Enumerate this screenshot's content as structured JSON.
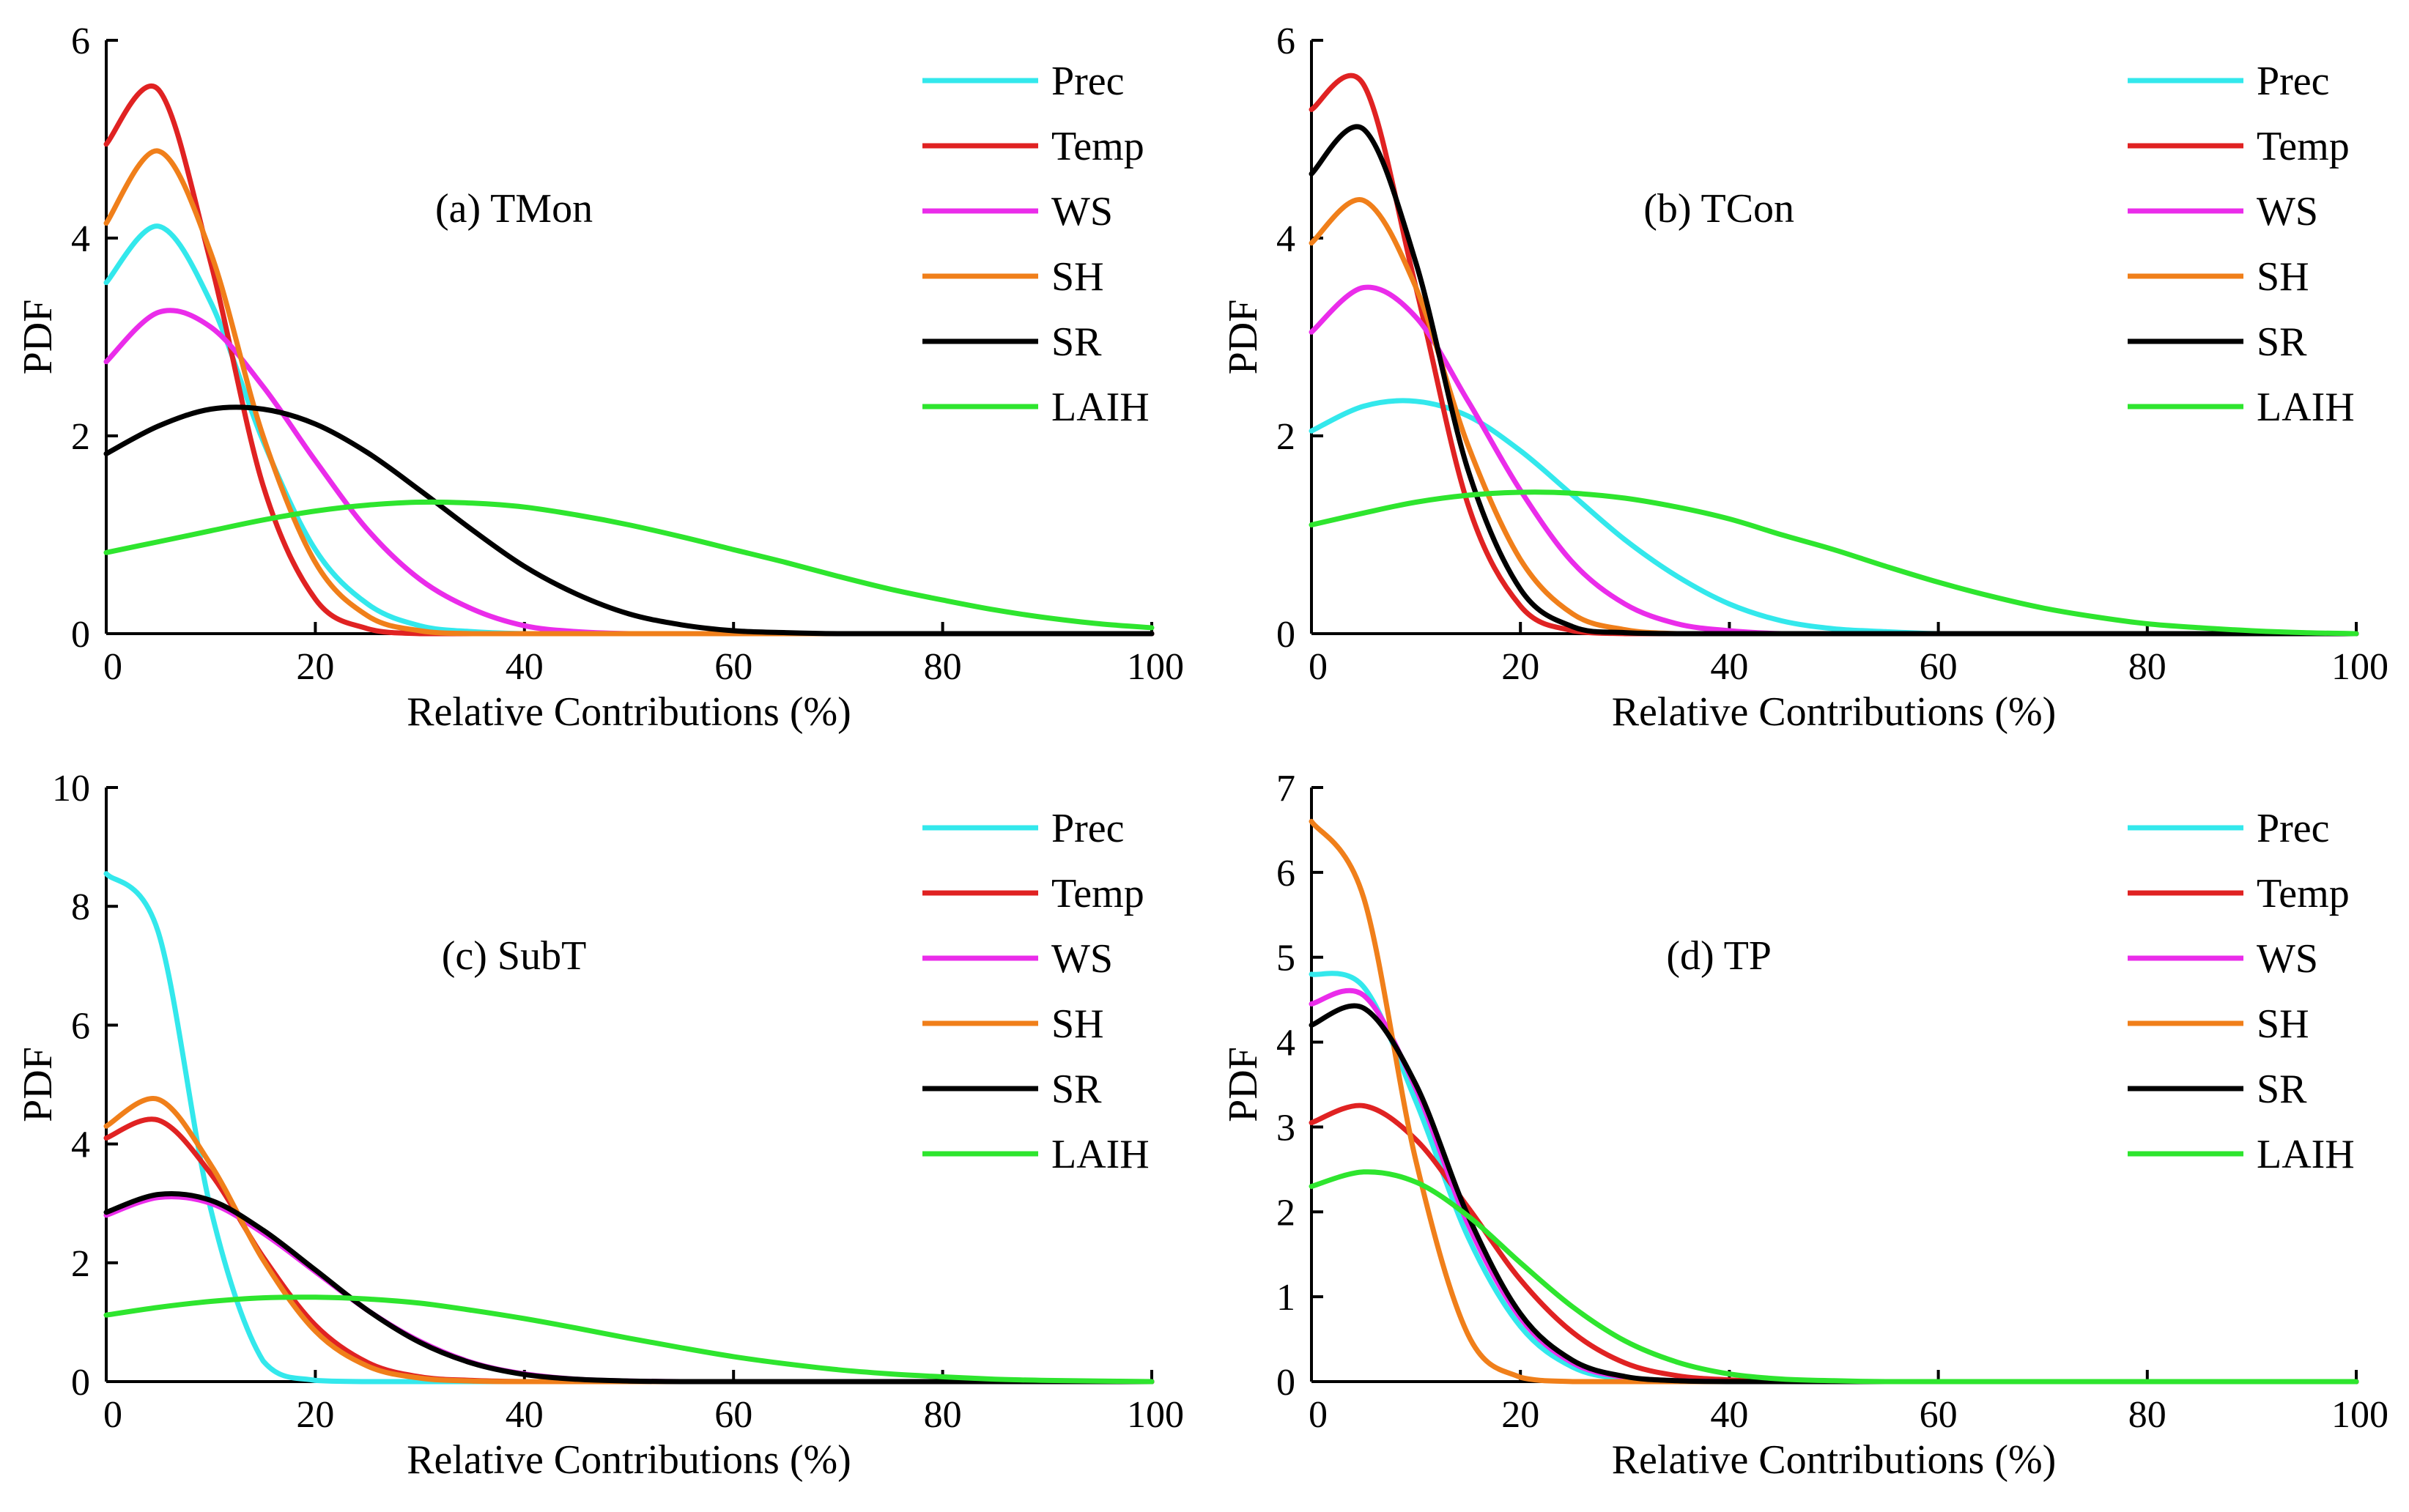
{
  "colors": {
    "Prec": "#33e8ec",
    "Temp": "#e02222",
    "WS": "#ea2cea",
    "SH": "#f07f1a",
    "SR": "#000000",
    "LAIH": "#2ee52e",
    "axis": "#000000"
  },
  "chart_data": [
    {
      "type": "line",
      "title": "(a) TMon",
      "xlabel": "Relative Contributions (%)",
      "ylabel": "PDF",
      "xlim": [
        0,
        100
      ],
      "ylim": [
        0,
        6
      ],
      "xticks": [
        0,
        20,
        40,
        60,
        80,
        100
      ],
      "yticks": [
        0,
        2,
        4,
        6
      ],
      "legend": "top-right",
      "x": [
        0,
        5,
        10,
        15,
        20,
        25,
        30,
        35,
        40,
        45,
        50,
        55,
        60,
        65,
        70,
        75,
        80,
        85,
        90,
        95,
        100
      ],
      "series": [
        {
          "name": "Prec",
          "values": [
            3.55,
            4.12,
            3.35,
            1.95,
            0.85,
            0.3,
            0.08,
            0.02,
            0,
            0,
            0,
            0,
            0,
            0,
            0,
            0,
            0,
            0,
            0,
            0,
            0
          ]
        },
        {
          "name": "Temp",
          "values": [
            4.95,
            5.5,
            3.75,
            1.5,
            0.35,
            0.05,
            0,
            0,
            0,
            0,
            0,
            0,
            0,
            0,
            0,
            0,
            0,
            0,
            0,
            0,
            0
          ]
        },
        {
          "name": "WS",
          "values": [
            2.75,
            3.25,
            3.1,
            2.5,
            1.75,
            1.05,
            0.55,
            0.25,
            0.08,
            0.02,
            0,
            0,
            0,
            0,
            0,
            0,
            0,
            0,
            0,
            0,
            0
          ]
        },
        {
          "name": "SH",
          "values": [
            4.15,
            4.88,
            3.85,
            2.0,
            0.72,
            0.18,
            0.03,
            0,
            0,
            0,
            0,
            0,
            0,
            0,
            0,
            0,
            0,
            0,
            0,
            0,
            0
          ]
        },
        {
          "name": "SR",
          "values": [
            1.82,
            2.1,
            2.27,
            2.27,
            2.12,
            1.83,
            1.45,
            1.05,
            0.68,
            0.4,
            0.2,
            0.09,
            0.03,
            0.01,
            0,
            0,
            0,
            0,
            0,
            0,
            0
          ]
        },
        {
          "name": "LAIH",
          "values": [
            0.82,
            0.93,
            1.04,
            1.15,
            1.24,
            1.3,
            1.33,
            1.32,
            1.28,
            1.2,
            1.1,
            0.98,
            0.85,
            0.72,
            0.58,
            0.45,
            0.34,
            0.24,
            0.16,
            0.1,
            0.06
          ]
        }
      ]
    },
    {
      "type": "line",
      "title": "(b) TCon",
      "xlabel": "Relative Contributions (%)",
      "ylabel": "PDF",
      "xlim": [
        0,
        100
      ],
      "ylim": [
        0,
        6
      ],
      "xticks": [
        0,
        20,
        40,
        60,
        80,
        100
      ],
      "yticks": [
        0,
        2,
        4,
        6
      ],
      "legend": "top-right",
      "x": [
        0,
        5,
        10,
        15,
        20,
        25,
        30,
        35,
        40,
        45,
        50,
        55,
        60,
        65,
        70,
        75,
        80,
        85,
        90,
        95,
        100
      ],
      "series": [
        {
          "name": "Prec",
          "values": [
            2.05,
            2.3,
            2.35,
            2.2,
            1.85,
            1.4,
            0.95,
            0.58,
            0.3,
            0.13,
            0.05,
            0.02,
            0,
            0,
            0,
            0,
            0,
            0,
            0,
            0,
            0
          ]
        },
        {
          "name": "Temp",
          "values": [
            5.3,
            5.55,
            3.5,
            1.3,
            0.28,
            0.03,
            0,
            0,
            0,
            0,
            0,
            0,
            0,
            0,
            0,
            0,
            0,
            0,
            0,
            0,
            0
          ]
        },
        {
          "name": "WS",
          "values": [
            3.05,
            3.5,
            3.2,
            2.35,
            1.45,
            0.72,
            0.3,
            0.1,
            0.03,
            0,
            0,
            0,
            0,
            0,
            0,
            0,
            0,
            0,
            0,
            0,
            0
          ]
        },
        {
          "name": "SH",
          "values": [
            3.95,
            4.38,
            3.5,
            1.9,
            0.75,
            0.2,
            0.04,
            0,
            0,
            0,
            0,
            0,
            0,
            0,
            0,
            0,
            0,
            0,
            0,
            0,
            0
          ]
        },
        {
          "name": "SR",
          "values": [
            4.65,
            5.1,
            3.75,
            1.65,
            0.45,
            0.07,
            0.01,
            0,
            0,
            0,
            0,
            0,
            0,
            0,
            0,
            0,
            0,
            0,
            0,
            0,
            0
          ]
        },
        {
          "name": "LAIH",
          "values": [
            1.1,
            1.22,
            1.33,
            1.4,
            1.43,
            1.42,
            1.37,
            1.28,
            1.16,
            1.0,
            0.85,
            0.68,
            0.52,
            0.38,
            0.26,
            0.17,
            0.1,
            0.06,
            0.03,
            0.01,
            0
          ]
        }
      ]
    },
    {
      "type": "line",
      "title": "(c) SubT",
      "xlabel": "Relative Contributions (%)",
      "ylabel": "PDF",
      "xlim": [
        0,
        100
      ],
      "ylim": [
        0,
        10
      ],
      "xticks": [
        0,
        20,
        40,
        60,
        80,
        100
      ],
      "yticks": [
        0,
        2,
        4,
        6,
        8,
        10
      ],
      "legend": "top-right",
      "x": [
        0,
        5,
        10,
        15,
        20,
        25,
        30,
        35,
        40,
        45,
        50,
        55,
        60,
        65,
        70,
        75,
        80,
        85,
        90,
        95,
        100
      ],
      "series": [
        {
          "name": "Prec",
          "values": [
            8.55,
            7.55,
            2.9,
            0.35,
            0.02,
            0,
            0,
            0,
            0,
            0,
            0,
            0,
            0,
            0,
            0,
            0,
            0,
            0,
            0,
            0,
            0
          ]
        },
        {
          "name": "Temp",
          "values": [
            4.1,
            4.4,
            3.5,
            2.1,
            0.95,
            0.32,
            0.08,
            0.02,
            0,
            0,
            0,
            0,
            0,
            0,
            0,
            0,
            0,
            0,
            0,
            0,
            0
          ]
        },
        {
          "name": "WS",
          "values": [
            2.8,
            3.1,
            3.0,
            2.5,
            1.85,
            1.2,
            0.68,
            0.32,
            0.13,
            0.04,
            0.01,
            0,
            0,
            0,
            0,
            0,
            0,
            0,
            0,
            0,
            0
          ]
        },
        {
          "name": "SH",
          "values": [
            4.3,
            4.75,
            3.65,
            2.05,
            0.85,
            0.26,
            0.06,
            0.01,
            0,
            0,
            0,
            0,
            0,
            0,
            0,
            0,
            0,
            0,
            0,
            0,
            0
          ]
        },
        {
          "name": "SR",
          "values": [
            2.85,
            3.15,
            3.05,
            2.55,
            1.88,
            1.2,
            0.66,
            0.31,
            0.12,
            0.04,
            0.01,
            0,
            0,
            0,
            0,
            0,
            0,
            0,
            0,
            0,
            0
          ]
        },
        {
          "name": "LAIH",
          "values": [
            1.12,
            1.25,
            1.35,
            1.41,
            1.42,
            1.39,
            1.32,
            1.2,
            1.06,
            0.9,
            0.73,
            0.57,
            0.42,
            0.3,
            0.2,
            0.13,
            0.08,
            0.04,
            0.02,
            0.01,
            0
          ]
        }
      ]
    },
    {
      "type": "line",
      "title": "(d) TP",
      "xlabel": "Relative Contributions (%)",
      "ylabel": "PDF",
      "xlim": [
        0,
        100
      ],
      "ylim": [
        0,
        7
      ],
      "xticks": [
        0,
        20,
        40,
        60,
        80,
        100
      ],
      "yticks": [
        0,
        1,
        2,
        3,
        4,
        5,
        6,
        7
      ],
      "legend": "top-right",
      "x": [
        0,
        5,
        10,
        15,
        20,
        25,
        30,
        35,
        40,
        45,
        50,
        55,
        60,
        65,
        70,
        75,
        80,
        85,
        90,
        95,
        100
      ],
      "series": [
        {
          "name": "Prec",
          "values": [
            4.8,
            4.65,
            3.3,
            1.7,
            0.65,
            0.17,
            0.03,
            0,
            0,
            0,
            0,
            0,
            0,
            0,
            0,
            0,
            0,
            0,
            0,
            0,
            0
          ]
        },
        {
          "name": "Temp",
          "values": [
            3.05,
            3.25,
            2.85,
            2.05,
            1.2,
            0.58,
            0.22,
            0.07,
            0.02,
            0,
            0,
            0,
            0,
            0,
            0,
            0,
            0,
            0,
            0,
            0,
            0
          ]
        },
        {
          "name": "WS",
          "values": [
            4.45,
            4.55,
            3.45,
            1.85,
            0.75,
            0.22,
            0.05,
            0.01,
            0,
            0,
            0,
            0,
            0,
            0,
            0,
            0,
            0,
            0,
            0,
            0,
            0
          ]
        },
        {
          "name": "SH",
          "values": [
            6.6,
            5.7,
            2.6,
            0.55,
            0.05,
            0,
            0,
            0,
            0,
            0,
            0,
            0,
            0,
            0,
            0,
            0,
            0,
            0,
            0,
            0,
            0
          ]
        },
        {
          "name": "SR",
          "values": [
            4.2,
            4.4,
            3.5,
            1.95,
            0.8,
            0.25,
            0.06,
            0.01,
            0,
            0,
            0,
            0,
            0,
            0,
            0,
            0,
            0,
            0,
            0,
            0,
            0
          ]
        },
        {
          "name": "LAIH",
          "values": [
            2.3,
            2.47,
            2.35,
            1.95,
            1.4,
            0.88,
            0.48,
            0.23,
            0.09,
            0.03,
            0.01,
            0,
            0,
            0,
            0,
            0,
            0,
            0,
            0,
            0,
            0
          ]
        }
      ]
    }
  ]
}
